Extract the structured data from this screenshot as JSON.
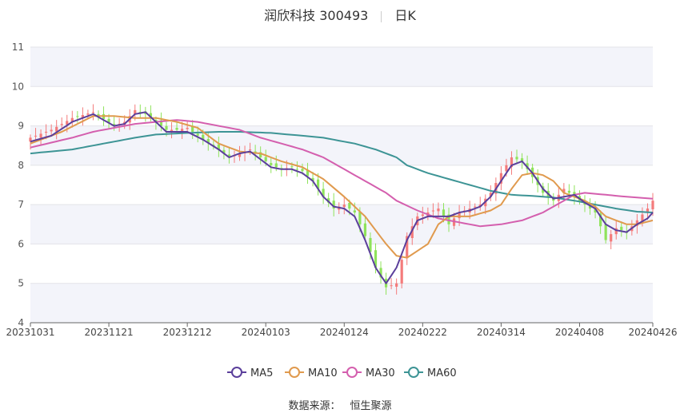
{
  "title": {
    "stock": "润欣科技 300493",
    "period": "日K"
  },
  "source": {
    "label": "数据来源：",
    "name": "恒生聚源"
  },
  "chart_data": {
    "type": "candlestick",
    "y_ticks": [
      "4",
      "5",
      "6",
      "7",
      "8",
      "9",
      "10",
      "11"
    ],
    "ylim": [
      4,
      11
    ],
    "x_ticks": [
      {
        "label": "20231031",
        "index": 0
      },
      {
        "label": "20231121",
        "index": 15
      },
      {
        "label": "20231212",
        "index": 30
      },
      {
        "label": "20240103",
        "index": 45
      },
      {
        "label": "20240124",
        "index": 60
      },
      {
        "label": "20240222",
        "index": 75
      },
      {
        "label": "20240314",
        "index": 90
      },
      {
        "label": "20240408",
        "index": 105
      },
      {
        "label": "20240426",
        "index": 119
      }
    ],
    "n_points": 120,
    "colors": {
      "up": "#f47b7b",
      "down": "#8fe35b",
      "ma5": "#5b3f9b",
      "ma10": "#e09a4e",
      "ma30": "#d45fae",
      "ma60": "#3d9495"
    },
    "legend": [
      {
        "name": "MA5",
        "color": "#5b3f9b"
      },
      {
        "name": "MA10",
        "color": "#e09a4e"
      },
      {
        "name": "MA30",
        "color": "#d45fae"
      },
      {
        "name": "MA60",
        "color": "#3d9495"
      }
    ],
    "close_anchors": [
      [
        0,
        8.7
      ],
      [
        4,
        8.9
      ],
      [
        8,
        9.2
      ],
      [
        12,
        9.35
      ],
      [
        16,
        9.0
      ],
      [
        18,
        9.1
      ],
      [
        20,
        9.4
      ],
      [
        22,
        9.3
      ],
      [
        24,
        9.1
      ],
      [
        26,
        8.9
      ],
      [
        28,
        8.9
      ],
      [
        30,
        8.95
      ],
      [
        33,
        8.65
      ],
      [
        36,
        8.4
      ],
      [
        38,
        8.2
      ],
      [
        40,
        8.3
      ],
      [
        42,
        8.4
      ],
      [
        44,
        8.2
      ],
      [
        46,
        8.0
      ],
      [
        48,
        7.9
      ],
      [
        50,
        7.95
      ],
      [
        52,
        7.85
      ],
      [
        54,
        7.6
      ],
      [
        56,
        7.2
      ],
      [
        58,
        6.9
      ],
      [
        60,
        7.0
      ],
      [
        62,
        6.8
      ],
      [
        64,
        6.2
      ],
      [
        66,
        5.4
      ],
      [
        68,
        4.9
      ],
      [
        70,
        5.0
      ],
      [
        72,
        6.2
      ],
      [
        74,
        6.7
      ],
      [
        76,
        6.8
      ],
      [
        78,
        6.9
      ],
      [
        80,
        6.5
      ],
      [
        82,
        6.8
      ],
      [
        84,
        6.9
      ],
      [
        86,
        7.0
      ],
      [
        88,
        7.3
      ],
      [
        90,
        7.8
      ],
      [
        92,
        8.2
      ],
      [
        94,
        8.1
      ],
      [
        96,
        7.7
      ],
      [
        98,
        7.3
      ],
      [
        100,
        7.1
      ],
      [
        102,
        7.4
      ],
      [
        104,
        7.2
      ],
      [
        106,
        7.0
      ],
      [
        108,
        6.8
      ],
      [
        110,
        6.1
      ],
      [
        112,
        6.4
      ],
      [
        114,
        6.3
      ],
      [
        116,
        6.6
      ],
      [
        118,
        6.9
      ],
      [
        119,
        7.1
      ]
    ],
    "ma5_anchors": [
      [
        0,
        8.6
      ],
      [
        4,
        8.75
      ],
      [
        8,
        9.1
      ],
      [
        12,
        9.3
      ],
      [
        16,
        9.0
      ],
      [
        18,
        9.05
      ],
      [
        20,
        9.3
      ],
      [
        22,
        9.35
      ],
      [
        24,
        9.1
      ],
      [
        26,
        8.85
      ],
      [
        28,
        8.85
      ],
      [
        30,
        8.85
      ],
      [
        33,
        8.65
      ],
      [
        36,
        8.4
      ],
      [
        38,
        8.2
      ],
      [
        40,
        8.3
      ],
      [
        42,
        8.35
      ],
      [
        44,
        8.15
      ],
      [
        46,
        7.95
      ],
      [
        48,
        7.9
      ],
      [
        50,
        7.9
      ],
      [
        52,
        7.8
      ],
      [
        54,
        7.6
      ],
      [
        56,
        7.2
      ],
      [
        58,
        6.95
      ],
      [
        60,
        6.9
      ],
      [
        62,
        6.7
      ],
      [
        64,
        6.1
      ],
      [
        66,
        5.4
      ],
      [
        68,
        5.0
      ],
      [
        70,
        5.4
      ],
      [
        72,
        6.1
      ],
      [
        74,
        6.6
      ],
      [
        76,
        6.7
      ],
      [
        78,
        6.7
      ],
      [
        80,
        6.7
      ],
      [
        82,
        6.8
      ],
      [
        84,
        6.85
      ],
      [
        86,
        6.95
      ],
      [
        88,
        7.2
      ],
      [
        90,
        7.6
      ],
      [
        92,
        8.0
      ],
      [
        94,
        8.1
      ],
      [
        96,
        7.8
      ],
      [
        98,
        7.4
      ],
      [
        100,
        7.15
      ],
      [
        102,
        7.2
      ],
      [
        104,
        7.25
      ],
      [
        106,
        7.05
      ],
      [
        108,
        6.9
      ],
      [
        110,
        6.5
      ],
      [
        112,
        6.35
      ],
      [
        114,
        6.3
      ],
      [
        116,
        6.5
      ],
      [
        118,
        6.65
      ],
      [
        119,
        6.8
      ]
    ],
    "ma10_anchors": [
      [
        0,
        8.55
      ],
      [
        6,
        8.85
      ],
      [
        12,
        9.25
      ],
      [
        16,
        9.25
      ],
      [
        20,
        9.2
      ],
      [
        24,
        9.2
      ],
      [
        28,
        9.1
      ],
      [
        32,
        8.95
      ],
      [
        36,
        8.55
      ],
      [
        40,
        8.35
      ],
      [
        44,
        8.3
      ],
      [
        48,
        8.1
      ],
      [
        52,
        7.95
      ],
      [
        56,
        7.65
      ],
      [
        60,
        7.2
      ],
      [
        64,
        6.7
      ],
      [
        68,
        6.0
      ],
      [
        70,
        5.7
      ],
      [
        72,
        5.65
      ],
      [
        76,
        6.0
      ],
      [
        78,
        6.5
      ],
      [
        80,
        6.7
      ],
      [
        84,
        6.7
      ],
      [
        88,
        6.85
      ],
      [
        90,
        7.0
      ],
      [
        92,
        7.4
      ],
      [
        94,
        7.75
      ],
      [
        96,
        7.8
      ],
      [
        98,
        7.75
      ],
      [
        100,
        7.6
      ],
      [
        102,
        7.3
      ],
      [
        104,
        7.2
      ],
      [
        106,
        7.1
      ],
      [
        108,
        6.95
      ],
      [
        110,
        6.7
      ],
      [
        112,
        6.6
      ],
      [
        114,
        6.5
      ],
      [
        116,
        6.5
      ],
      [
        119,
        6.6
      ]
    ],
    "ma30_anchors": [
      [
        0,
        8.45
      ],
      [
        8,
        8.7
      ],
      [
        12,
        8.85
      ],
      [
        16,
        8.95
      ],
      [
        20,
        9.05
      ],
      [
        24,
        9.1
      ],
      [
        28,
        9.15
      ],
      [
        32,
        9.1
      ],
      [
        36,
        9.0
      ],
      [
        40,
        8.9
      ],
      [
        44,
        8.7
      ],
      [
        48,
        8.55
      ],
      [
        52,
        8.4
      ],
      [
        56,
        8.2
      ],
      [
        60,
        7.9
      ],
      [
        64,
        7.6
      ],
      [
        68,
        7.3
      ],
      [
        70,
        7.1
      ],
      [
        74,
        6.85
      ],
      [
        78,
        6.65
      ],
      [
        82,
        6.55
      ],
      [
        86,
        6.45
      ],
      [
        90,
        6.5
      ],
      [
        94,
        6.6
      ],
      [
        98,
        6.8
      ],
      [
        102,
        7.1
      ],
      [
        104,
        7.25
      ],
      [
        106,
        7.3
      ],
      [
        110,
        7.25
      ],
      [
        114,
        7.2
      ],
      [
        119,
        7.15
      ]
    ],
    "ma60_anchors": [
      [
        0,
        8.3
      ],
      [
        8,
        8.4
      ],
      [
        16,
        8.6
      ],
      [
        20,
        8.7
      ],
      [
        24,
        8.78
      ],
      [
        30,
        8.82
      ],
      [
        36,
        8.85
      ],
      [
        40,
        8.85
      ],
      [
        46,
        8.82
      ],
      [
        52,
        8.75
      ],
      [
        56,
        8.7
      ],
      [
        62,
        8.55
      ],
      [
        66,
        8.4
      ],
      [
        70,
        8.2
      ],
      [
        72,
        8.0
      ],
      [
        76,
        7.8
      ],
      [
        80,
        7.65
      ],
      [
        84,
        7.5
      ],
      [
        88,
        7.35
      ],
      [
        92,
        7.25
      ],
      [
        96,
        7.22
      ],
      [
        100,
        7.18
      ],
      [
        104,
        7.1
      ],
      [
        108,
        7.0
      ],
      [
        112,
        6.9
      ],
      [
        116,
        6.82
      ],
      [
        119,
        6.8
      ]
    ]
  }
}
